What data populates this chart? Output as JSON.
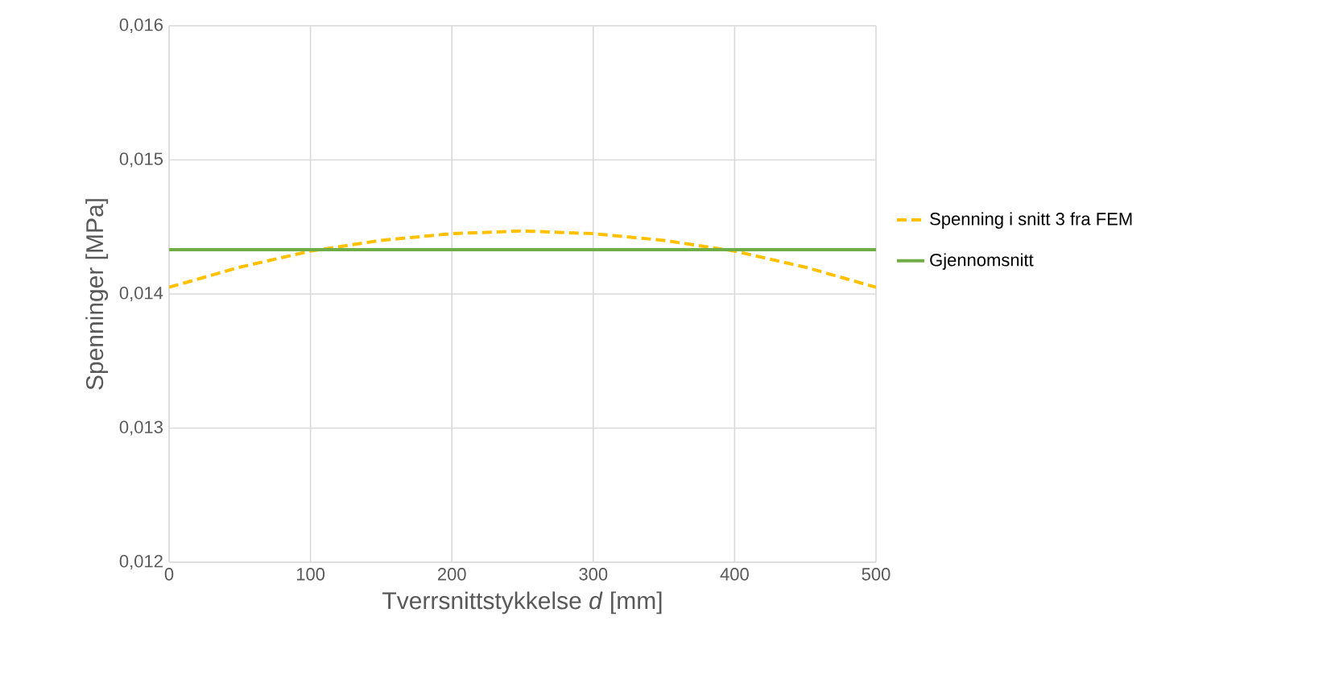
{
  "chart_data": {
    "type": "line",
    "xlabel": "Tverrsnittstykkelse *d* [mm]",
    "ylabel": "Spenninger [MPa]",
    "xlim": [
      0,
      500
    ],
    "ylim": [
      0.012,
      0.016
    ],
    "xticks": [
      0,
      100,
      200,
      300,
      400,
      500
    ],
    "yticks": [
      {
        "value": 0.012,
        "label": "0,012"
      },
      {
        "value": 0.013,
        "label": "0,013"
      },
      {
        "value": 0.014,
        "label": "0,014"
      },
      {
        "value": 0.015,
        "label": "0,015"
      },
      {
        "value": 0.016,
        "label": "0,016"
      }
    ],
    "grid": true,
    "legend": "right",
    "series": [
      {
        "name": "Spenning i snitt 3 fra FEM",
        "color": "#ffc000",
        "line_style": "dashed",
        "x": [
          0,
          50,
          100,
          150,
          200,
          250,
          300,
          350,
          400,
          450,
          500
        ],
        "values": [
          0.01405,
          0.0142,
          0.01432,
          0.0144,
          0.01445,
          0.01447,
          0.01445,
          0.0144,
          0.01432,
          0.0142,
          0.01405
        ]
      },
      {
        "name": "Gjennomsnitt",
        "color": "#70ad47",
        "line_style": "solid",
        "x": [
          0,
          500
        ],
        "values": [
          0.01433,
          0.01433
        ]
      }
    ]
  }
}
